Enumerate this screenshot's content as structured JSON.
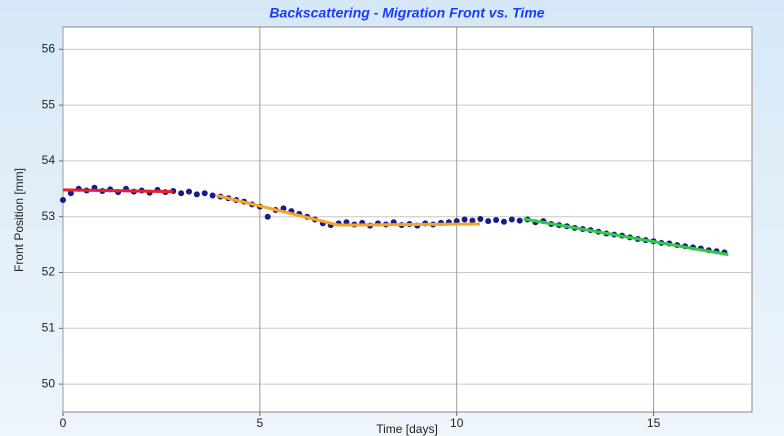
{
  "chart_data": {
    "type": "scatter",
    "title": "Backscattering - Migration Front vs. Time",
    "xlabel": "Time [days]",
    "ylabel": "Front Position [mm]",
    "x": [
      0,
      0.2,
      0.4,
      0.6,
      0.8,
      1.0,
      1.2,
      1.4,
      1.6,
      1.8,
      2.0,
      2.2,
      2.4,
      2.6,
      2.8,
      3.0,
      3.2,
      3.4,
      3.6,
      3.8,
      4.0,
      4.2,
      4.4,
      4.6,
      4.8,
      5.0,
      5.2,
      5.4,
      5.6,
      5.8,
      6.0,
      6.2,
      6.4,
      6.6,
      6.8,
      7.0,
      7.2,
      7.4,
      7.6,
      7.8,
      8.0,
      8.2,
      8.4,
      8.6,
      8.8,
      9.0,
      9.2,
      9.4,
      9.6,
      9.8,
      10.0,
      10.2,
      10.4,
      10.6,
      10.8,
      11.0,
      11.2,
      11.4,
      11.6,
      11.8,
      12.0,
      12.2,
      12.4,
      12.6,
      12.8,
      13.0,
      13.2,
      13.4,
      13.6,
      13.8,
      14.0,
      14.2,
      14.4,
      14.6,
      14.8,
      15.0,
      15.2,
      15.4,
      15.6,
      15.8,
      16.0,
      16.2,
      16.4,
      16.6,
      16.8
    ],
    "values": [
      53.3,
      53.42,
      53.5,
      53.47,
      53.52,
      53.46,
      53.49,
      53.44,
      53.5,
      53.45,
      53.47,
      53.43,
      53.48,
      53.44,
      53.46,
      53.42,
      53.45,
      53.4,
      53.42,
      53.38,
      53.36,
      53.33,
      53.3,
      53.27,
      53.22,
      53.18,
      53.0,
      53.12,
      53.15,
      53.1,
      53.05,
      53.0,
      52.95,
      52.88,
      52.85,
      52.88,
      52.9,
      52.86,
      52.89,
      52.84,
      52.88,
      52.86,
      52.9,
      52.85,
      52.87,
      52.84,
      52.88,
      52.86,
      52.89,
      52.9,
      52.92,
      52.95,
      52.93,
      52.96,
      52.92,
      52.94,
      52.91,
      52.95,
      52.93,
      52.95,
      52.9,
      52.92,
      52.87,
      52.85,
      52.83,
      52.8,
      52.78,
      52.76,
      52.73,
      52.7,
      52.68,
      52.66,
      52.63,
      52.6,
      52.58,
      52.56,
      52.53,
      52.52,
      52.49,
      52.47,
      52.45,
      52.43,
      52.4,
      52.38,
      52.36
    ],
    "color": "#1a1a8c",
    "fits": [
      {
        "color": "#e8202a",
        "x": [
          0,
          2.8
        ],
        "values": [
          53.48,
          53.45
        ]
      },
      {
        "color": "#f5a623",
        "x": [
          3.9,
          7.0,
          10.6
        ],
        "values": [
          53.38,
          52.85,
          52.87
        ]
      },
      {
        "color": "#2ecc40",
        "x": [
          11.7,
          16.9
        ],
        "values": [
          52.96,
          52.32
        ]
      }
    ],
    "xlim": [
      0,
      17.5
    ],
    "ylim": [
      49.5,
      56.4
    ],
    "xticks": [
      0,
      5,
      10,
      15
    ],
    "yticks": [
      50,
      51,
      52,
      53,
      54,
      55,
      56
    ],
    "grid": true
  }
}
